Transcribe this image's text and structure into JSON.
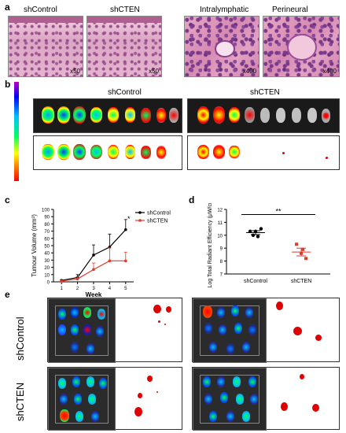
{
  "panels": {
    "a": "a",
    "b": "b",
    "c": "c",
    "d": "d",
    "e": "e"
  },
  "panel_a": {
    "titles": [
      "shControl",
      "shCTEN",
      "Intralymphatic",
      "Perineural"
    ],
    "magnifications": [
      "x50",
      "x50",
      "x400",
      "x400"
    ]
  },
  "panel_b": {
    "titles": [
      "shControl",
      "shCTEN"
    ]
  },
  "panel_e": {
    "row_labels": [
      "shControl",
      "shCTEN"
    ]
  },
  "colors": {
    "control": "#000000",
    "cten": "#e23a2c"
  },
  "chart_data": [
    {
      "type": "line",
      "xlabel": "Week",
      "ylabel": "Tumour Volume (mm³)",
      "x": [
        1,
        2,
        3,
        4,
        5
      ],
      "xlim": [
        0.5,
        5.5
      ],
      "ylim": [
        0,
        100
      ],
      "yticks": [
        0,
        10,
        20,
        30,
        40,
        50,
        60,
        70,
        80,
        90,
        100
      ],
      "legend": "top-right",
      "annotation": "*",
      "series": [
        {
          "name": "shControl",
          "values": [
            2,
            6,
            37,
            48,
            72
          ],
          "errors": [
            1,
            4,
            14,
            18,
            14
          ]
        },
        {
          "name": "shCTEN",
          "values": [
            1,
            4,
            17,
            29,
            29
          ],
          "errors": [
            1,
            3,
            9,
            18,
            12
          ]
        }
      ]
    },
    {
      "type": "scatter",
      "ylabel": "Log Total Radiant Efficiency (μW/cm²)",
      "categories": [
        "shControl",
        "shCTEN"
      ],
      "ylim": [
        7,
        12
      ],
      "yticks": [
        7,
        8,
        9,
        10,
        11,
        12
      ],
      "annotation": "**",
      "series": [
        {
          "name": "shControl",
          "values": [
            10.3,
            10.0,
            9.9,
            10.5,
            10.3
          ],
          "mean": 10.2,
          "sem": 0.15
        },
        {
          "name": "shCTEN",
          "values": [
            9.3,
            8.6,
            8.2,
            8.9
          ],
          "mean": 8.7,
          "sem": 0.3
        }
      ]
    }
  ]
}
